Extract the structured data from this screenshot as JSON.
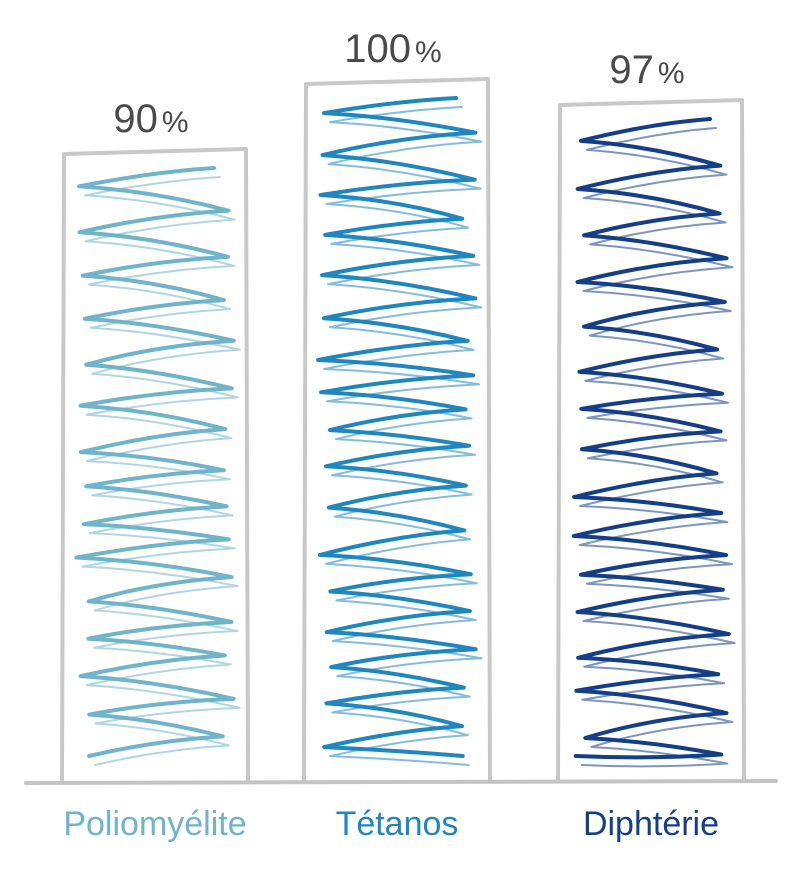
{
  "chart_data": {
    "type": "bar",
    "categories": [
      "Poliomyélite",
      "Tétanos",
      "Diphtérie"
    ],
    "values": [
      90,
      100,
      97
    ],
    "value_labels": [
      "90",
      "100",
      "97"
    ],
    "unit": "%",
    "colors": [
      "#6fb4c9",
      "#1f87bd",
      "#143e86"
    ],
    "ylim": [
      0,
      100
    ],
    "grid": false,
    "legend": "none",
    "title": "",
    "xlabel": "",
    "ylabel": ""
  }
}
